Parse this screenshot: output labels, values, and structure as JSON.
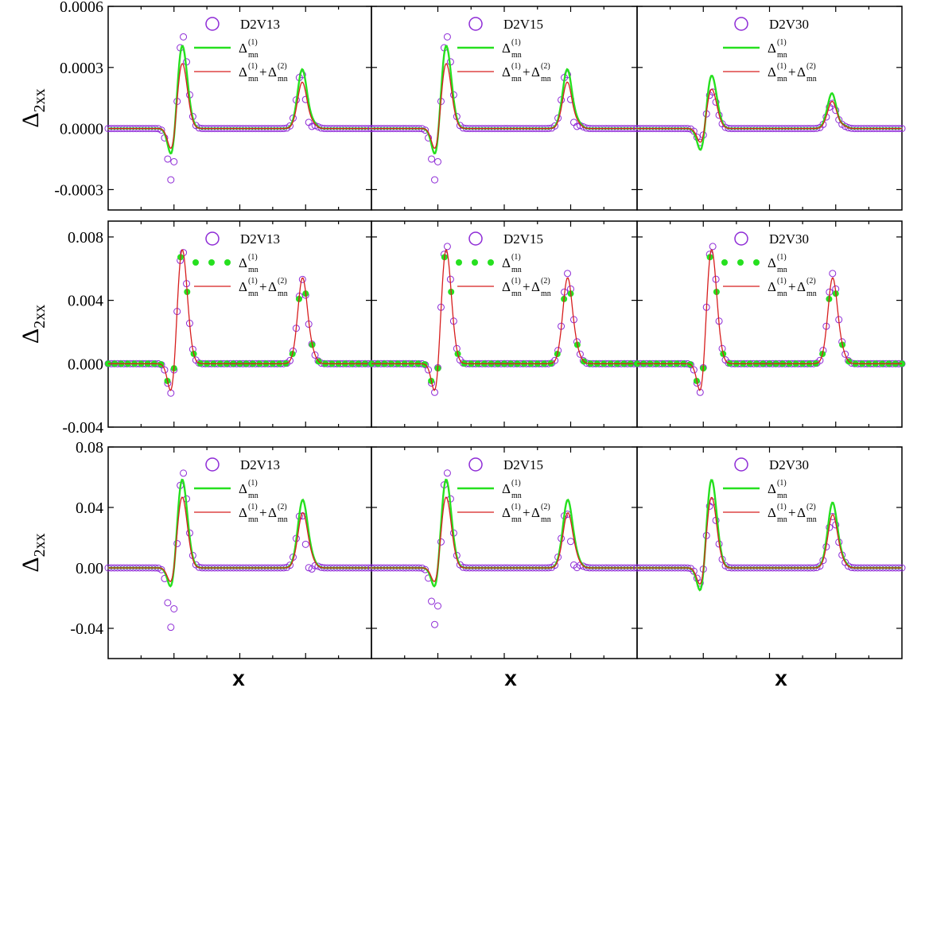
{
  "figure": {
    "x_label": "x",
    "y_label": "Δ",
    "y_label_sub": "2xx"
  },
  "legend": {
    "series_labels": [
      "D2V13",
      "D2V15",
      "D2V30"
    ],
    "delta1": "Δ",
    "delta1_sup": "(1)",
    "delta1_sub": "mn",
    "delta2": "Δ",
    "delta2_sup": "(2)",
    "delta2_sub": "mn",
    "plus": "+"
  },
  "colors": {
    "circles": "#8e2bd6",
    "green": "#26e01f",
    "red": "#d71e1e",
    "axis": "#000000"
  },
  "chart_data": [
    {
      "type": "line",
      "row": 1,
      "ylim": [
        -0.0004,
        0.0006
      ],
      "yticks": [
        -0.0003,
        0.0,
        0.0003,
        0.0006
      ],
      "ytick_labels": [
        "-0.0003",
        "0.0000",
        "0.0003",
        "0.0006"
      ],
      "green_style": "line",
      "panels": [
        {
          "series_label": "D2V13",
          "peak": {
            "circles": 0.00048,
            "green": 0.00042,
            "red": 0.00033
          },
          "trough": {
            "circles": -0.00034,
            "green": -0.00019,
            "red": -0.00015
          }
        },
        {
          "series_label": "D2V15",
          "peak": {
            "circles": 0.00048,
            "green": 0.00042,
            "red": 0.00033
          },
          "trough": {
            "circles": -0.00034,
            "green": -0.00019,
            "red": -0.00015
          }
        },
        {
          "series_label": "D2V30",
          "peak": {
            "circles": 0.00019,
            "green": 0.00027,
            "red": 0.0002
          },
          "trough": {
            "circles": -0.0001,
            "green": -0.00015,
            "red": -0.0001
          }
        }
      ]
    },
    {
      "type": "line",
      "row": 2,
      "ylim": [
        -0.004,
        0.009
      ],
      "yticks": [
        -0.004,
        0.0,
        0.004,
        0.008
      ],
      "ytick_labels": [
        "-0.004",
        "0.000",
        "0.004",
        "0.008"
      ],
      "green_style": "dots",
      "panels": [
        {
          "series_label": "D2V13",
          "peak": {
            "circles": 0.0074,
            "green": 0.0074,
            "red": 0.0074
          },
          "trough": {
            "circles": -0.003,
            "green": -0.0029,
            "red": -0.0028
          }
        },
        {
          "series_label": "D2V15",
          "peak": {
            "circles": 0.0078,
            "green": 0.0074,
            "red": 0.0074
          },
          "trough": {
            "circles": -0.003,
            "green": -0.0029,
            "red": -0.0028
          }
        },
        {
          "series_label": "D2V30",
          "peak": {
            "circles": 0.0078,
            "green": 0.0074,
            "red": 0.0074
          },
          "trough": {
            "circles": -0.003,
            "green": -0.0029,
            "red": -0.0028
          }
        }
      ]
    },
    {
      "type": "line",
      "row": 3,
      "ylim": [
        -0.06,
        0.08
      ],
      "yticks": [
        -0.04,
        0.0,
        0.04,
        0.08
      ],
      "ytick_labels": [
        "-0.04",
        "0.00",
        "0.04",
        "0.08"
      ],
      "green_style": "line",
      "panels": [
        {
          "series_label": "D2V13",
          "peak": {
            "circles": 0.067,
            "green": 0.06,
            "red": 0.048
          },
          "trough": {
            "circles": -0.052,
            "green": -0.021,
            "red": -0.016
          }
        },
        {
          "series_label": "D2V15",
          "peak": {
            "circles": 0.067,
            "green": 0.06,
            "red": 0.048
          },
          "trough": {
            "circles": -0.05,
            "green": -0.021,
            "red": -0.016
          }
        },
        {
          "series_label": "D2V30",
          "peak": {
            "circles": 0.046,
            "green": 0.06,
            "red": 0.048
          },
          "trough": {
            "circles": -0.017,
            "green": -0.024,
            "red": -0.018
          }
        }
      ]
    }
  ]
}
